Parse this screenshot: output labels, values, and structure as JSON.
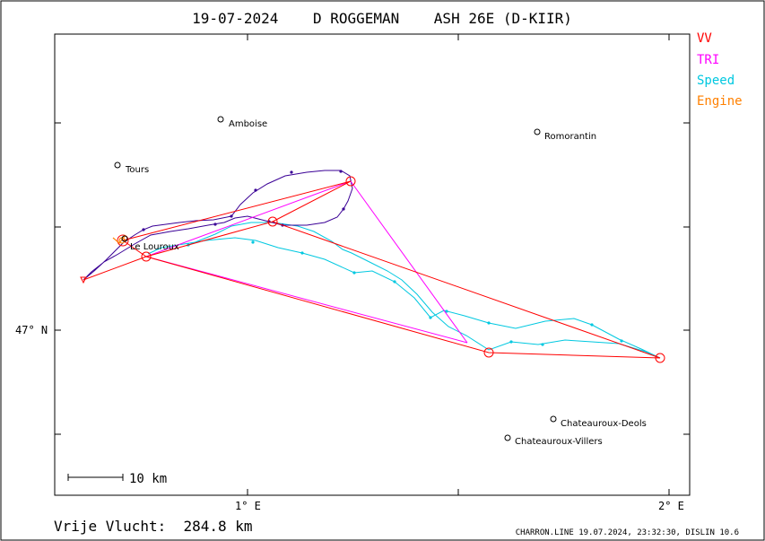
{
  "header": {
    "title": "19-07-2024    D ROGGEMAN    ASH 26E (D-KIIR)"
  },
  "legend": {
    "items": [
      {
        "label": "VV",
        "color": "#ff0000"
      },
      {
        "label": "TRI",
        "color": "#ff00ff"
      },
      {
        "label": "Speed",
        "color": "#00c8e0"
      },
      {
        "label": "Engine",
        "color": "#ff8000"
      }
    ]
  },
  "axes": {
    "lat_label": "47° N",
    "lon_labels": [
      "1° E",
      "2° E"
    ]
  },
  "towns": [
    {
      "name": "Amboise"
    },
    {
      "name": "Romorantin"
    },
    {
      "name": "Tours"
    },
    {
      "name": "Le Louroux"
    },
    {
      "name": "Chateauroux-Deols"
    },
    {
      "name": "Chateauroux-Villers"
    }
  ],
  "scale_bar": {
    "label": "10 km"
  },
  "footer": {
    "free_flight": "Vrije Vlucht:  284.8 km",
    "credit": "CHARRON.LINE 19.07.2024, 23:32:30, DISLIN 10.6"
  },
  "colors": {
    "frame": "#000000",
    "vv": "#ff0000",
    "tri": "#ff00ff",
    "speed": "#00c8e0",
    "climb": "#3a0096",
    "engine": "#ff8000"
  }
}
